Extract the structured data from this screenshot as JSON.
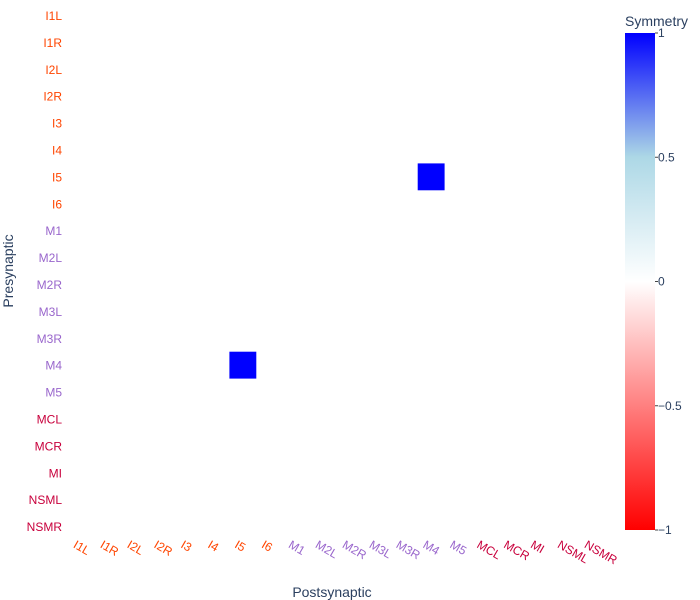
{
  "chart_data": {
    "type": "heatmap",
    "x_title": "Postsynaptic",
    "y_title": "Presynaptic",
    "labels": [
      "I1L",
      "I1R",
      "I2L",
      "I2R",
      "I3",
      "I4",
      "I5",
      "I6",
      "M1",
      "M2L",
      "M2R",
      "M3L",
      "M3R",
      "M4",
      "M5",
      "MCL",
      "MCR",
      "MI",
      "NSML",
      "NSMR"
    ],
    "label_colors": {
      "I": "#ff4500",
      "M": "#9966cc",
      "other": "#c8003c"
    },
    "cells": [
      {
        "pre": "I5",
        "post": "M4",
        "value": 1
      },
      {
        "pre": "M4",
        "post": "I5",
        "value": 1
      }
    ],
    "colorbar": {
      "title": "Symmetry",
      "range": [
        -1,
        1
      ],
      "ticks": [
        1,
        0.5,
        0,
        -0.5,
        -1
      ],
      "tick_labels": [
        "1",
        "0.5",
        "0",
        "−0.5",
        "−1"
      ],
      "colorscale": [
        "#ff0000",
        "#ffffff",
        "#add8e6",
        "#0000ff"
      ]
    }
  }
}
